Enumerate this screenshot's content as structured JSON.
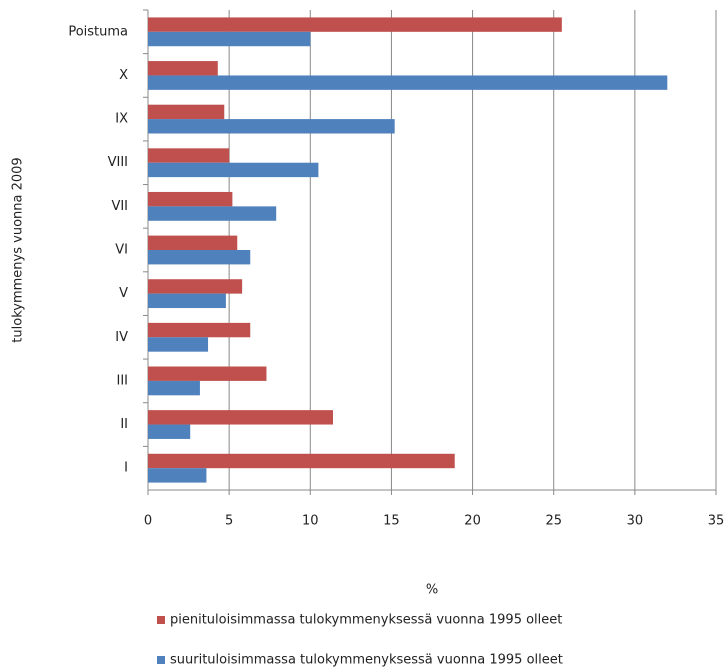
{
  "chart_data": {
    "type": "bar",
    "orientation": "horizontal",
    "categories": [
      "Poistuma",
      "X",
      "IX",
      "VIII",
      "VII",
      "VI",
      "V",
      "IV",
      "III",
      "II",
      "I"
    ],
    "series": [
      {
        "name": "pienituloisimmassa tulokymmenyksessä  vuonna 1995 olleet",
        "color": "#c0504d",
        "values": [
          25.5,
          4.3,
          4.7,
          5.0,
          5.2,
          5.5,
          5.8,
          6.3,
          7.3,
          11.4,
          18.9
        ]
      },
      {
        "name": "suurituloisimmassa tulokymmenyksessä  vuonna 1995 olleet",
        "color": "#4f81bd",
        "values": [
          10.0,
          32.0,
          15.2,
          10.5,
          7.9,
          6.3,
          4.8,
          3.7,
          3.2,
          2.6,
          3.6
        ]
      }
    ],
    "xlabel": "%",
    "ylabel": "tulokymmenys vuonna 2009",
    "xlim": [
      0,
      35
    ],
    "xticks": [
      0,
      5,
      10,
      15,
      20,
      25,
      30,
      35
    ],
    "grid": true,
    "legend": "bottom"
  }
}
